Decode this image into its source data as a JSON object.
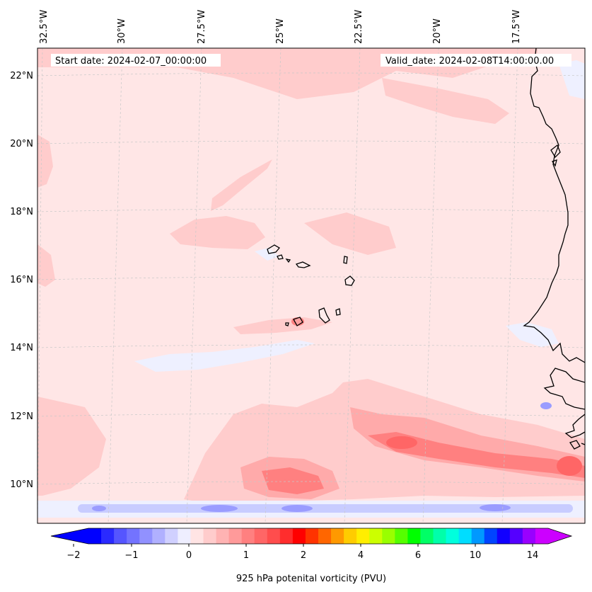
{
  "header": {
    "start_date": "Start date: 2024-02-07_00:00:00",
    "valid_date": "Valid_date: 2024-02-08T14:00:00.00"
  },
  "longitude_labels": [
    "32.5°W",
    "30°W",
    "27.5°W",
    "25°W",
    "22.5°W",
    "20°W",
    "17.5°W"
  ],
  "latitude_labels": [
    "22°N",
    "20°N",
    "18°N",
    "16°N",
    "14°N",
    "12°N",
    "10°N"
  ],
  "colorbar": {
    "title": "925 hPa potenital vorticity (PVU)",
    "tick_labels": [
      "−2",
      "−1",
      "0",
      "1",
      "2",
      "4",
      "6",
      "10",
      "14"
    ],
    "colors": [
      "#0000ff",
      "#2a2aff",
      "#5555ff",
      "#7373ff",
      "#9191ff",
      "#b0b0ff",
      "#d0d0ff",
      "#eeeeff",
      "#ffe4e4",
      "#ffcccc",
      "#ffb3b3",
      "#ff9a9a",
      "#ff8080",
      "#ff6666",
      "#ff4d4d",
      "#ff2d2d",
      "#ff0000",
      "#ff3300",
      "#ff6600",
      "#ff9900",
      "#ffcc00",
      "#ffee00",
      "#ccff00",
      "#99ff00",
      "#55ff00",
      "#00ff00",
      "#00ff66",
      "#00ffaa",
      "#00ffdd",
      "#00ddff",
      "#0099ff",
      "#0044ff",
      "#1100ff",
      "#5500ff",
      "#9900ff",
      "#cc00ff"
    ],
    "under_color": "#0000ff",
    "over_color": "#cc00ff"
  },
  "colors": {
    "background_field": "#ffe6e6",
    "light_positive": "#ffcccc",
    "medium_positive": "#ffaaaa",
    "strong_positive": "#ff8080",
    "negative_light": "#eef0ff",
    "negative_medium": "#c8ccff",
    "negative_strong": "#9a9cff",
    "coastline": "#000000",
    "gridline": "#c8c8c8"
  }
}
